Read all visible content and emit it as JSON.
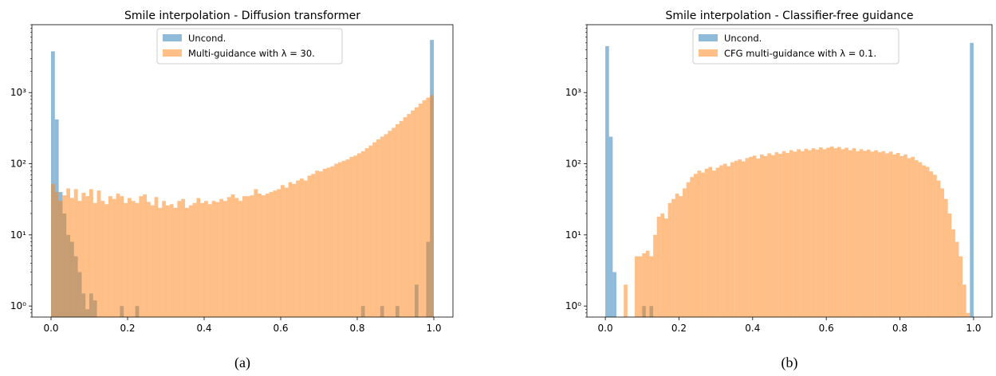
{
  "chart_data": [
    {
      "type": "histogram",
      "panel": "(a)",
      "title": "Smile interpolation - Diffusion transformer",
      "caption": "(a)",
      "xlabel": "",
      "ylabel": "",
      "xlim": [
        -0.05,
        1.05
      ],
      "yscale": "log",
      "ylim": [
        0.7,
        9000
      ],
      "x_ticks": [
        0.0,
        0.2,
        0.4,
        0.6,
        0.8,
        1.0
      ],
      "x_tick_labels": [
        "0.0",
        "0.2",
        "0.4",
        "0.6",
        "0.8",
        "1.0"
      ],
      "y_ticks": [
        1,
        10,
        100,
        1000
      ],
      "y_tick_labels": [
        "10⁰",
        "10¹",
        "10²",
        "10³"
      ],
      "legend_position": "top-center",
      "bins": 100,
      "series": [
        {
          "name": "Uncond.",
          "color": "#1f77b4",
          "alpha": 0.5,
          "values": [
            3800,
            420,
            40,
            20,
            10,
            8,
            5,
            3,
            1.5,
            0.9,
            1.5,
            1.2,
            0,
            0,
            0,
            0,
            0,
            0,
            1,
            0,
            0,
            0,
            1,
            0,
            0,
            0,
            0,
            0,
            0,
            0,
            0,
            0,
            0,
            0,
            0,
            0,
            0,
            0,
            0,
            0,
            0,
            0,
            0,
            0,
            0,
            0,
            0,
            0,
            0,
            0,
            0,
            0,
            0,
            0,
            0,
            0,
            0,
            0,
            0,
            0,
            0,
            0,
            0,
            0,
            0,
            0,
            0,
            0,
            0,
            0,
            0,
            0,
            0,
            0,
            0,
            0,
            0,
            0,
            0,
            0,
            0,
            1,
            0,
            0,
            0,
            0,
            1,
            0,
            0,
            0,
            1,
            0,
            0,
            0,
            0,
            2,
            0,
            0,
            8,
            5500
          ]
        },
        {
          "name": "Multi-guidance with λ = 30.",
          "color": "#ff7f0e",
          "alpha": 0.5,
          "values": [
            52,
            40,
            30,
            36,
            45,
            33,
            44,
            30,
            39,
            35,
            44,
            28,
            42,
            30,
            27,
            35,
            32,
            38,
            35,
            28,
            33,
            30,
            28,
            35,
            37,
            29,
            26,
            34,
            24,
            30,
            26,
            27,
            24,
            30,
            32,
            24,
            26,
            28,
            33,
            28,
            30,
            27,
            30,
            29,
            32,
            30,
            34,
            37,
            33,
            30,
            35,
            35,
            36,
            44,
            38,
            36,
            38,
            40,
            42,
            44,
            50,
            46,
            55,
            52,
            58,
            62,
            58,
            68,
            72,
            80,
            78,
            85,
            88,
            92,
            100,
            105,
            110,
            115,
            125,
            130,
            140,
            150,
            165,
            180,
            200,
            220,
            240,
            260,
            290,
            320,
            360,
            400,
            450,
            500,
            560,
            620,
            700,
            780,
            850,
            920
          ]
        }
      ]
    },
    {
      "type": "histogram",
      "panel": "(b)",
      "title": "Smile interpolation - Classifier-free guidance",
      "caption": "(b)",
      "xlabel": "",
      "ylabel": "",
      "xlim": [
        -0.05,
        1.05
      ],
      "yscale": "log",
      "ylim": [
        0.7,
        9000
      ],
      "x_ticks": [
        0.0,
        0.2,
        0.4,
        0.6,
        0.8,
        1.0
      ],
      "x_tick_labels": [
        "0.0",
        "0.2",
        "0.4",
        "0.6",
        "0.8",
        "1.0"
      ],
      "y_ticks": [
        1,
        10,
        100,
        1000
      ],
      "y_tick_labels": [
        "10⁰",
        "10¹",
        "10²",
        "10³"
      ],
      "legend_position": "top-center",
      "bins": 100,
      "series": [
        {
          "name": "Uncond.",
          "color": "#1f77b4",
          "alpha": 0.5,
          "values": [
            4500,
            240,
            3,
            0,
            0,
            0,
            0,
            0,
            0,
            0,
            1,
            0,
            1,
            0,
            0,
            0,
            0,
            0,
            0,
            0,
            0,
            0,
            0,
            0,
            0,
            0,
            0,
            0,
            0,
            0,
            0,
            0,
            0,
            0,
            0,
            0,
            0,
            0,
            0,
            0,
            0,
            0,
            0,
            0,
            0,
            0,
            0,
            0,
            0,
            0,
            0,
            0,
            0,
            0,
            0,
            0,
            0,
            0,
            0,
            0,
            0,
            0,
            0,
            0,
            0,
            0,
            0,
            0,
            0,
            0,
            0,
            0,
            0,
            0,
            0,
            0,
            0,
            0,
            0,
            0,
            0,
            0,
            0,
            0,
            0,
            0,
            0,
            0,
            0,
            0,
            0,
            0,
            0,
            0,
            0,
            0,
            0,
            0,
            0,
            5000
          ]
        },
        {
          "name": "CFG multi-guidance with λ = 0.1.",
          "color": "#ff7f0e",
          "alpha": 0.5,
          "values": [
            0,
            0,
            0,
            0,
            0,
            2,
            0,
            0,
            5,
            5,
            5.5,
            6,
            5,
            10,
            18,
            20,
            17,
            28,
            32,
            38,
            35,
            45,
            55,
            65,
            72,
            80,
            75,
            85,
            90,
            80,
            88,
            95,
            100,
            92,
            105,
            110,
            115,
            108,
            120,
            125,
            130,
            118,
            135,
            128,
            140,
            132,
            145,
            138,
            150,
            142,
            155,
            148,
            160,
            150,
            162,
            155,
            165,
            158,
            170,
            160,
            168,
            175,
            165,
            172,
            160,
            168,
            155,
            165,
            150,
            160,
            152,
            158,
            148,
            155,
            145,
            150,
            140,
            148,
            135,
            142,
            128,
            135,
            120,
            125,
            112,
            105,
            95,
            90,
            78,
            70,
            58,
            45,
            32,
            20,
            12,
            8,
            5,
            2,
            0.8,
            0
          ]
        }
      ]
    }
  ]
}
